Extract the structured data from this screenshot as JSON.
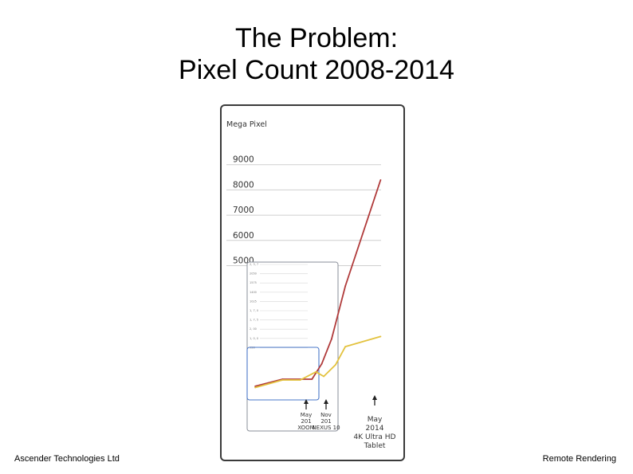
{
  "slide": {
    "title_line1": "The Problem:",
    "title_line2": "Pixel Count 2008-2014",
    "footer_left": "Ascender Technologies Ltd",
    "footer_right": "Remote Rendering"
  },
  "chart_data": {
    "type": "line",
    "ylabel": "Mega Pixel",
    "yticks": [
      5000,
      6000,
      7000,
      8000,
      9000
    ],
    "ylim": [
      0,
      9500
    ],
    "grid": true,
    "series": [
      {
        "color": "#b03a3a",
        "values": [
          {
            "x": 2008.0,
            "y": 130
          },
          {
            "x": 2009.4,
            "y": 410
          },
          {
            "x": 2010.9,
            "y": 410
          },
          {
            "x": 2011.4,
            "y": 1020
          },
          {
            "x": 2011.9,
            "y": 2000
          },
          {
            "x": 2012.6,
            "y": 4100
          },
          {
            "x": 2014.4,
            "y": 8300
          }
        ]
      },
      {
        "color": "#e3c23e",
        "values": [
          {
            "x": 2008.0,
            "y": 80
          },
          {
            "x": 2009.4,
            "y": 380
          },
          {
            "x": 2010.3,
            "y": 380
          },
          {
            "x": 2011.1,
            "y": 700
          },
          {
            "x": 2011.5,
            "y": 520
          },
          {
            "x": 2012.1,
            "y": 980
          },
          {
            "x": 2012.6,
            "y": 1700
          },
          {
            "x": 2014.4,
            "y": 2100
          }
        ]
      }
    ],
    "inset_small_yticks": [
      "2, 3, 7",
      "2050",
      "1575",
      "1400",
      "1025",
      "1, 7, 0",
      "1, 7, 5",
      "2, 00",
      "1, 0, 0",
      "950"
    ],
    "annotations": [
      {
        "lines": [
          "May",
          "201",
          "XOOM"
        ]
      },
      {
        "lines": [
          "Nov",
          "201",
          "NEXUS 10"
        ]
      },
      {
        "lines": [
          "May",
          "2014",
          "4K Ultra HD",
          "Tablet"
        ]
      }
    ]
  }
}
